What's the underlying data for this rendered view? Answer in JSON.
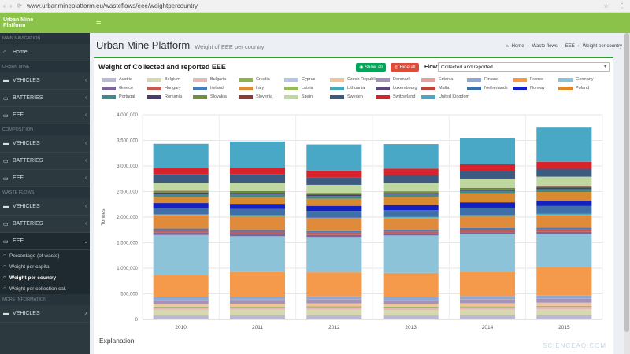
{
  "browser": {
    "url": "www.urbanmineplatform.eu/wasteflows/eee/weightpercountry"
  },
  "sidebar": {
    "logo_line1": "Urban Mine",
    "logo_line2": "Platform",
    "sections": {
      "main_nav": "Main navigation",
      "urban_mine": "Urban mine",
      "composition": "Composition",
      "waste_flows": "Waste flows",
      "more_info": "More information"
    },
    "home": "Home",
    "um_items": [
      "VEHICLES",
      "BATTERIES",
      "EEE"
    ],
    "comp_items": [
      "VEHICLES",
      "BATTERIES",
      "EEE"
    ],
    "wf_items": [
      "VEHICLES",
      "BATTERIES",
      "EEE"
    ],
    "wf_sub": [
      "Percentage (of waste)",
      "Weight per capita",
      "Weight per country",
      "Weight per collection cat."
    ],
    "more_items": [
      "VEHICLES"
    ]
  },
  "header": {
    "title": "Urban Mine Platform",
    "subtitle": "Weight of EEE per country",
    "breadcrumb": [
      "Home",
      "Waste flows",
      "EEE",
      "Weight per country"
    ]
  },
  "panel": {
    "title": "Weight of Collected and reported EEE",
    "show_all": "Show all",
    "hide_all": "Hide all",
    "flow_label": "Flow:",
    "flow_value": "Collected and reported"
  },
  "explanation": {
    "title": "Explanation"
  },
  "watermark": "SCIENCEAQ.COM",
  "chart_data": {
    "type": "bar",
    "stacked": true,
    "categories": [
      "2010",
      "2011",
      "2012",
      "2013",
      "2014",
      "2015"
    ],
    "ylabel": "Tonnes",
    "ylim": [
      0,
      4000000
    ],
    "yticks": [
      "0",
      "500,000",
      "1,000,000",
      "1,500,000",
      "2,000,000",
      "2,500,000",
      "3,000,000",
      "3,500,000",
      "4,000,000"
    ],
    "series": [
      {
        "name": "Austria",
        "color": "#b9b9d6",
        "values": [
          76000,
          78000,
          78000,
          76000,
          78000,
          80000
        ]
      },
      {
        "name": "Belgium",
        "color": "#d8d8b0",
        "values": [
          110000,
          115000,
          115000,
          108000,
          110000,
          115000
        ]
      },
      {
        "name": "Bulgaria",
        "color": "#e3b8b8",
        "values": [
          44000,
          42000,
          45000,
          46000,
          48000,
          48000
        ]
      },
      {
        "name": "Croatia",
        "color": "#8fb14d",
        "values": [
          14000,
          15000,
          16000,
          15000,
          16000,
          17000
        ]
      },
      {
        "name": "Cyprus",
        "color": "#b5c5e0",
        "values": [
          4000,
          4000,
          4000,
          3000,
          3000,
          3000
        ]
      },
      {
        "name": "Czech Republic",
        "color": "#efc49c",
        "values": [
          52000,
          54000,
          56000,
          58000,
          62000,
          65000
        ]
      },
      {
        "name": "Denmark",
        "color": "#a392b9",
        "values": [
          80000,
          75000,
          72000,
          72000,
          74000,
          72000
        ]
      },
      {
        "name": "Estonia",
        "color": "#e79e9e",
        "values": [
          5000,
          5000,
          5000,
          5000,
          5000,
          5000
        ]
      },
      {
        "name": "Finland",
        "color": "#8fa8d1",
        "values": [
          55000,
          58000,
          60000,
          58000,
          60000,
          60000
        ]
      },
      {
        "name": "France",
        "color": "#f59a4a",
        "values": [
          430000,
          480000,
          470000,
          470000,
          480000,
          560000
        ]
      },
      {
        "name": "Germany",
        "color": "#8cc3d9",
        "values": [
          780000,
          700000,
          690000,
          730000,
          730000,
          640000
        ]
      },
      {
        "name": "Greece",
        "color": "#7a669a",
        "values": [
          47000,
          42000,
          40000,
          37000,
          40000,
          45000
        ]
      },
      {
        "name": "Hungary",
        "color": "#c25b56",
        "values": [
          45000,
          47000,
          43000,
          40000,
          45000,
          50000
        ]
      },
      {
        "name": "Ireland",
        "color": "#4a7bb8",
        "values": [
          34000,
          32000,
          33000,
          34000,
          34000,
          36000
        ]
      },
      {
        "name": "Italy",
        "color": "#e08a3c",
        "values": [
          260000,
          270000,
          240000,
          230000,
          235000,
          245000
        ]
      },
      {
        "name": "Latvia",
        "color": "#98b95d",
        "values": [
          5000,
          6000,
          6000,
          6000,
          6000,
          6000
        ]
      },
      {
        "name": "Lithuania",
        "color": "#4ba5b5",
        "values": [
          10000,
          12000,
          12000,
          13000,
          14000,
          15000
        ]
      },
      {
        "name": "Luxembourg",
        "color": "#5b4a78",
        "values": [
          4000,
          4000,
          4000,
          4000,
          4000,
          4000
        ]
      },
      {
        "name": "Malta",
        "color": "#b8453d",
        "values": [
          1000,
          1000,
          1000,
          1000,
          1000,
          1000
        ]
      },
      {
        "name": "Netherlands",
        "color": "#3e6fa8",
        "values": [
          120000,
          120000,
          130000,
          130000,
          140000,
          150000
        ]
      },
      {
        "name": "Norway",
        "color": "#1520c0",
        "values": [
          100000,
          100000,
          100000,
          100000,
          105000,
          110000
        ]
      },
      {
        "name": "Poland",
        "color": "#d98a2e",
        "values": [
          120000,
          130000,
          140000,
          160000,
          175000,
          165000
        ]
      },
      {
        "name": "Portugal",
        "color": "#3f8a8a",
        "values": [
          55000,
          57000,
          54000,
          50000,
          50000,
          55000
        ]
      },
      {
        "name": "Romania",
        "color": "#4c3a70",
        "values": [
          30000,
          28000,
          25000,
          22000,
          24000,
          30000
        ]
      },
      {
        "name": "Slovakia",
        "color": "#6f8f3e",
        "values": [
          25000,
          26000,
          24000,
          23000,
          24000,
          25000
        ]
      },
      {
        "name": "Slovenia",
        "color": "#8e3b36",
        "values": [
          8000,
          8000,
          9000,
          9000,
          9000,
          9000
        ]
      },
      {
        "name": "Spain",
        "color": "#bfd8a0",
        "values": [
          160000,
          165000,
          160000,
          170000,
          175000,
          180000
        ]
      },
      {
        "name": "Sweden",
        "color": "#3d5a80",
        "values": [
          160000,
          160000,
          150000,
          150000,
          155000,
          155000
        ]
      },
      {
        "name": "Switzerland",
        "color": "#d9232c",
        "values": [
          130000,
          135000,
          130000,
          130000,
          130000,
          135000
        ]
      },
      {
        "name": "United Kingdom",
        "color": "#4aa8c7",
        "values": [
          470000,
          510000,
          510000,
          480000,
          510000,
          670000
        ]
      }
    ]
  }
}
